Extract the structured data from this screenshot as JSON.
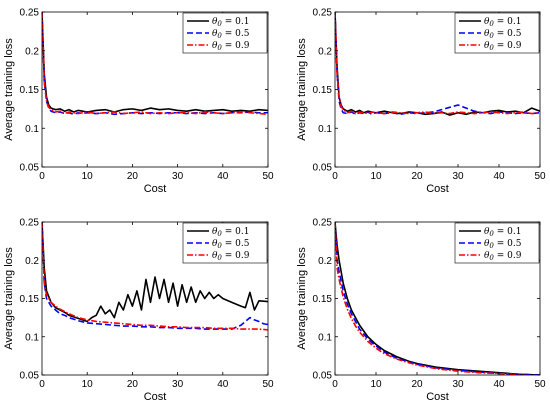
{
  "chart_data": [
    {
      "type": "line",
      "xlabel": "Cost",
      "ylabel": "Average training loss",
      "xlim": [
        0,
        50
      ],
      "ylim": [
        0.05,
        0.25
      ],
      "xticks": [
        0,
        10,
        20,
        30,
        40,
        50
      ],
      "yticks": [
        0.05,
        0.1,
        0.15,
        0.2,
        0.25
      ],
      "xtick_labels": [
        "0",
        "10",
        "20",
        "30",
        "40",
        "50"
      ],
      "ytick_labels": [
        "0.05",
        "0.1",
        "0.15",
        "0.2",
        "0.25"
      ],
      "grid": false,
      "legend_position": "top-right",
      "series": [
        {
          "name": "θ0 = 0.1",
          "color": "#000000",
          "style": "solid",
          "x": [
            0,
            0.5,
            1,
            1.5,
            2,
            3,
            4,
            5,
            6,
            7,
            8,
            9,
            10,
            12,
            14,
            16,
            18,
            20,
            22,
            24,
            26,
            28,
            30,
            32,
            34,
            36,
            38,
            40,
            42,
            44,
            46,
            48,
            50
          ],
          "y": [
            0.25,
            0.17,
            0.14,
            0.13,
            0.126,
            0.124,
            0.125,
            0.122,
            0.124,
            0.121,
            0.123,
            0.122,
            0.121,
            0.123,
            0.124,
            0.121,
            0.124,
            0.125,
            0.123,
            0.126,
            0.124,
            0.125,
            0.123,
            0.122,
            0.124,
            0.122,
            0.123,
            0.124,
            0.122,
            0.123,
            0.122,
            0.124,
            0.123
          ]
        },
        {
          "name": "θ0 = 0.5",
          "color": "#0000ff",
          "style": "dashed",
          "x": [
            0,
            0.5,
            1,
            1.5,
            2,
            3,
            4,
            5,
            6,
            7,
            8,
            9,
            10,
            12,
            14,
            16,
            18,
            20,
            22,
            24,
            26,
            28,
            30,
            32,
            34,
            36,
            38,
            40,
            42,
            44,
            46,
            48,
            50
          ],
          "y": [
            0.25,
            0.16,
            0.135,
            0.126,
            0.122,
            0.12,
            0.121,
            0.119,
            0.12,
            0.118,
            0.12,
            0.119,
            0.12,
            0.119,
            0.12,
            0.118,
            0.119,
            0.12,
            0.119,
            0.12,
            0.119,
            0.12,
            0.12,
            0.119,
            0.12,
            0.119,
            0.12,
            0.119,
            0.12,
            0.12,
            0.121,
            0.12,
            0.12
          ]
        },
        {
          "name": "θ0 = 0.9",
          "color": "#ff0000",
          "style": "dashdot",
          "x": [
            0,
            0.5,
            1,
            1.5,
            2,
            3,
            4,
            5,
            6,
            7,
            8,
            9,
            10,
            12,
            14,
            16,
            18,
            20,
            22,
            24,
            26,
            28,
            30,
            32,
            34,
            36,
            38,
            40,
            42,
            44,
            46,
            48,
            50
          ],
          "y": [
            0.25,
            0.16,
            0.135,
            0.127,
            0.124,
            0.121,
            0.122,
            0.119,
            0.121,
            0.12,
            0.119,
            0.12,
            0.121,
            0.119,
            0.12,
            0.121,
            0.119,
            0.12,
            0.121,
            0.119,
            0.12,
            0.119,
            0.12,
            0.12,
            0.119,
            0.121,
            0.12,
            0.119,
            0.12,
            0.121,
            0.12,
            0.119,
            0.118
          ]
        }
      ]
    },
    {
      "type": "line",
      "xlabel": "Cost",
      "ylabel": "Average training loss",
      "xlim": [
        0,
        50
      ],
      "ylim": [
        0.05,
        0.25
      ],
      "xticks": [
        0,
        10,
        20,
        30,
        40,
        50
      ],
      "yticks": [
        0.05,
        0.1,
        0.15,
        0.2,
        0.25
      ],
      "xtick_labels": [
        "0",
        "10",
        "20",
        "30",
        "40",
        "50"
      ],
      "ytick_labels": [
        "0.05",
        "0.1",
        "0.15",
        "0.2",
        "0.25"
      ],
      "grid": false,
      "legend_position": "top-right",
      "series": [
        {
          "name": "θ0 = 0.1",
          "color": "#000000",
          "style": "solid",
          "x": [
            0,
            0.5,
            1,
            1.5,
            2,
            3,
            4,
            5,
            6,
            7,
            8,
            9,
            10,
            12,
            14,
            16,
            18,
            20,
            22,
            24,
            26,
            28,
            30,
            32,
            34,
            36,
            38,
            40,
            42,
            44,
            46,
            48,
            50
          ],
          "y": [
            0.25,
            0.18,
            0.14,
            0.13,
            0.125,
            0.122,
            0.124,
            0.121,
            0.123,
            0.12,
            0.122,
            0.121,
            0.12,
            0.122,
            0.12,
            0.119,
            0.121,
            0.12,
            0.118,
            0.119,
            0.121,
            0.117,
            0.12,
            0.118,
            0.121,
            0.12,
            0.122,
            0.123,
            0.121,
            0.122,
            0.12,
            0.126,
            0.122
          ]
        },
        {
          "name": "θ0 = 0.5",
          "color": "#0000ff",
          "style": "dashed",
          "x": [
            0,
            0.5,
            1,
            1.5,
            2,
            3,
            4,
            5,
            6,
            7,
            8,
            9,
            10,
            12,
            14,
            16,
            18,
            20,
            22,
            24,
            26,
            28,
            30,
            32,
            34,
            36,
            38,
            40,
            42,
            44,
            46,
            48,
            50
          ],
          "y": [
            0.25,
            0.17,
            0.135,
            0.125,
            0.12,
            0.119,
            0.121,
            0.118,
            0.12,
            0.119,
            0.121,
            0.118,
            0.12,
            0.119,
            0.12,
            0.118,
            0.12,
            0.119,
            0.12,
            0.121,
            0.124,
            0.127,
            0.13,
            0.126,
            0.122,
            0.12,
            0.119,
            0.121,
            0.12,
            0.119,
            0.12,
            0.119,
            0.12
          ]
        },
        {
          "name": "θ0 = 0.9",
          "color": "#ff0000",
          "style": "dashdot",
          "x": [
            0,
            0.5,
            1,
            1.5,
            2,
            3,
            4,
            5,
            6,
            7,
            8,
            9,
            10,
            12,
            14,
            16,
            18,
            20,
            22,
            24,
            26,
            28,
            30,
            32,
            34,
            36,
            38,
            40,
            42,
            44,
            46,
            48,
            50
          ],
          "y": [
            0.25,
            0.17,
            0.14,
            0.128,
            0.124,
            0.12,
            0.122,
            0.119,
            0.121,
            0.12,
            0.119,
            0.121,
            0.12,
            0.119,
            0.121,
            0.12,
            0.119,
            0.12,
            0.121,
            0.119,
            0.12,
            0.119,
            0.121,
            0.12,
            0.119,
            0.12,
            0.121,
            0.12,
            0.119,
            0.12,
            0.121,
            0.119,
            0.12
          ]
        }
      ]
    },
    {
      "type": "line",
      "xlabel": "Cost",
      "ylabel": "Average training loss",
      "xlim": [
        0,
        50
      ],
      "ylim": [
        0.05,
        0.25
      ],
      "xticks": [
        0,
        10,
        20,
        30,
        40,
        50
      ],
      "yticks": [
        0.05,
        0.1,
        0.15,
        0.2,
        0.25
      ],
      "xtick_labels": [
        "0",
        "10",
        "20",
        "30",
        "40",
        "50"
      ],
      "ytick_labels": [
        "0.05",
        "0.1",
        "0.15",
        "0.2",
        "0.25"
      ],
      "grid": false,
      "legend_position": "top-right",
      "series": [
        {
          "name": "θ0 = 0.1",
          "color": "#000000",
          "style": "solid",
          "x": [
            0,
            0.5,
            1,
            2,
            3,
            4,
            5,
            6,
            7,
            8,
            9,
            10,
            11,
            12,
            13,
            14,
            15,
            16,
            17,
            18,
            19,
            20,
            21,
            22,
            23,
            24,
            25,
            26,
            27,
            28,
            29,
            30,
            31,
            32,
            33,
            34,
            35,
            36,
            37,
            38,
            39,
            40,
            42,
            44,
            45,
            46,
            47,
            48,
            50
          ],
          "y": [
            0.25,
            0.19,
            0.16,
            0.145,
            0.138,
            0.135,
            0.132,
            0.128,
            0.126,
            0.124,
            0.122,
            0.12,
            0.125,
            0.128,
            0.14,
            0.13,
            0.135,
            0.125,
            0.145,
            0.135,
            0.155,
            0.14,
            0.16,
            0.135,
            0.175,
            0.145,
            0.178,
            0.15,
            0.175,
            0.145,
            0.17,
            0.14,
            0.168,
            0.145,
            0.165,
            0.145,
            0.16,
            0.15,
            0.158,
            0.15,
            0.155,
            0.15,
            0.145,
            0.14,
            0.138,
            0.158,
            0.135,
            0.147,
            0.146
          ]
        },
        {
          "name": "θ0 = 0.5",
          "color": "#0000ff",
          "style": "dashed",
          "x": [
            0,
            0.5,
            1,
            2,
            3,
            4,
            5,
            6,
            8,
            10,
            12,
            14,
            16,
            18,
            20,
            22,
            24,
            26,
            28,
            30,
            32,
            34,
            36,
            38,
            40,
            42,
            44,
            45,
            46,
            47,
            48,
            49,
            50
          ],
          "y": [
            0.25,
            0.17,
            0.15,
            0.14,
            0.135,
            0.13,
            0.128,
            0.125,
            0.121,
            0.118,
            0.117,
            0.116,
            0.115,
            0.114,
            0.114,
            0.113,
            0.113,
            0.112,
            0.112,
            0.111,
            0.111,
            0.111,
            0.11,
            0.11,
            0.11,
            0.11,
            0.115,
            0.12,
            0.125,
            0.122,
            0.12,
            0.117,
            0.116
          ]
        },
        {
          "name": "θ0 = 0.9",
          "color": "#ff0000",
          "style": "dashdot",
          "x": [
            0,
            0.5,
            1,
            2,
            3,
            4,
            5,
            6,
            8,
            10,
            12,
            14,
            16,
            18,
            20,
            22,
            24,
            26,
            28,
            30,
            32,
            34,
            36,
            38,
            40,
            42,
            44,
            46,
            48,
            50
          ],
          "y": [
            0.25,
            0.17,
            0.155,
            0.145,
            0.14,
            0.136,
            0.133,
            0.13,
            0.125,
            0.122,
            0.12,
            0.119,
            0.118,
            0.117,
            0.116,
            0.115,
            0.115,
            0.114,
            0.113,
            0.113,
            0.112,
            0.112,
            0.112,
            0.111,
            0.111,
            0.111,
            0.11,
            0.11,
            0.11,
            0.109
          ]
        }
      ]
    },
    {
      "type": "line",
      "xlabel": "Cost",
      "ylabel": "Average training loss",
      "xlim": [
        0,
        50
      ],
      "ylim": [
        0.05,
        0.25
      ],
      "xticks": [
        0,
        10,
        20,
        30,
        40,
        50
      ],
      "yticks": [
        0.05,
        0.1,
        0.15,
        0.2,
        0.25
      ],
      "xtick_labels": [
        "0",
        "10",
        "20",
        "30",
        "40",
        "50"
      ],
      "ytick_labels": [
        "0.05",
        "0.1",
        "0.15",
        "0.2",
        "0.25"
      ],
      "grid": false,
      "legend_position": "top-right",
      "series": [
        {
          "name": "θ0 = 0.1",
          "color": "#000000",
          "style": "solid",
          "x": [
            0,
            0.5,
            1,
            2,
            3,
            4,
            5,
            6,
            8,
            10,
            12,
            15,
            18,
            20,
            25,
            30,
            35,
            40,
            45,
            50
          ],
          "y": [
            0.25,
            0.22,
            0.2,
            0.17,
            0.15,
            0.135,
            0.125,
            0.115,
            0.1,
            0.09,
            0.082,
            0.074,
            0.068,
            0.065,
            0.06,
            0.057,
            0.055,
            0.053,
            0.051,
            0.05
          ]
        },
        {
          "name": "θ0 = 0.5",
          "color": "#0000ff",
          "style": "dashed",
          "x": [
            0,
            0.5,
            1,
            2,
            3,
            4,
            5,
            6,
            8,
            10,
            12,
            15,
            18,
            20,
            25,
            30,
            35,
            40,
            45,
            50
          ],
          "y": [
            0.25,
            0.2,
            0.185,
            0.16,
            0.143,
            0.13,
            0.12,
            0.11,
            0.097,
            0.088,
            0.08,
            0.072,
            0.067,
            0.064,
            0.059,
            0.056,
            0.054,
            0.052,
            0.051,
            0.05
          ]
        },
        {
          "name": "θ0 = 0.9",
          "color": "#ff0000",
          "style": "dashdot",
          "x": [
            0,
            0.5,
            1,
            2,
            3,
            4,
            5,
            6,
            8,
            10,
            12,
            15,
            18,
            20,
            25,
            30,
            35,
            40,
            45,
            50
          ],
          "y": [
            0.25,
            0.19,
            0.175,
            0.152,
            0.136,
            0.124,
            0.114,
            0.106,
            0.094,
            0.085,
            0.078,
            0.071,
            0.066,
            0.063,
            0.058,
            0.055,
            0.053,
            0.052,
            0.05,
            0.049
          ]
        }
      ]
    }
  ]
}
